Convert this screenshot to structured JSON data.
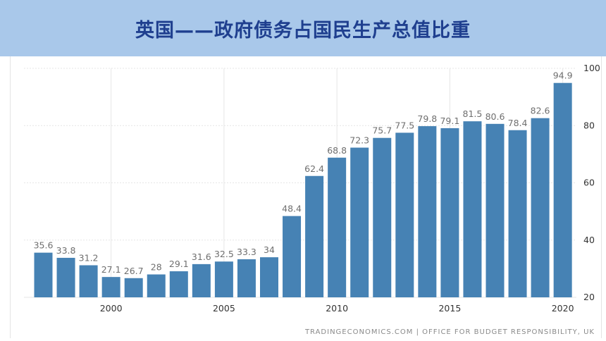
{
  "title": "英国——政府债务占国民生产总值比重",
  "source": "TRADINGECONOMICS.COM | OFFICE FOR BUDGET RESPONSIBILITY, UK",
  "colors": {
    "bar": "#4682b4",
    "banner": "#a9c8ea",
    "title": "#1f3f8f"
  },
  "chart_data": {
    "type": "bar",
    "title": "英国——政府债务占国民生产总值比重",
    "xlabel": "",
    "ylabel": "",
    "ylim": [
      20,
      100
    ],
    "y_axis_side": "right",
    "grid": true,
    "x": [
      1997,
      1998,
      1999,
      2000,
      2001,
      2002,
      2003,
      2004,
      2005,
      2006,
      2007,
      2008,
      2009,
      2010,
      2011,
      2012,
      2013,
      2014,
      2015,
      2016,
      2017,
      2018,
      2019,
      2020
    ],
    "values": [
      35.6,
      33.8,
      31.2,
      27.1,
      26.7,
      28,
      29.1,
      31.6,
      32.5,
      33.3,
      34,
      48.4,
      62.4,
      68.8,
      72.3,
      75.7,
      77.5,
      79.8,
      79.1,
      81.5,
      80.6,
      78.4,
      82.6,
      94.9
    ],
    "data_labels": [
      "35.6",
      "33.8",
      "31.2",
      "27.1",
      "26.7",
      "28",
      "29.1",
      "31.6",
      "32.5",
      "33.3",
      "34",
      "48.4",
      "62.4",
      "68.8",
      "72.3",
      "75.7",
      "77.5",
      "79.8",
      "79.1",
      "81.5",
      "80.6",
      "78.4",
      "82.6",
      "94.9"
    ],
    "x_ticks": [
      "2000",
      "2005",
      "2010",
      "2015",
      "2020"
    ],
    "x_tick_years": [
      2000,
      2005,
      2010,
      2015,
      2020
    ],
    "y_ticks": [
      "20",
      "40",
      "60",
      "80",
      "100"
    ],
    "y_tick_values": [
      20,
      40,
      60,
      80,
      100
    ]
  }
}
